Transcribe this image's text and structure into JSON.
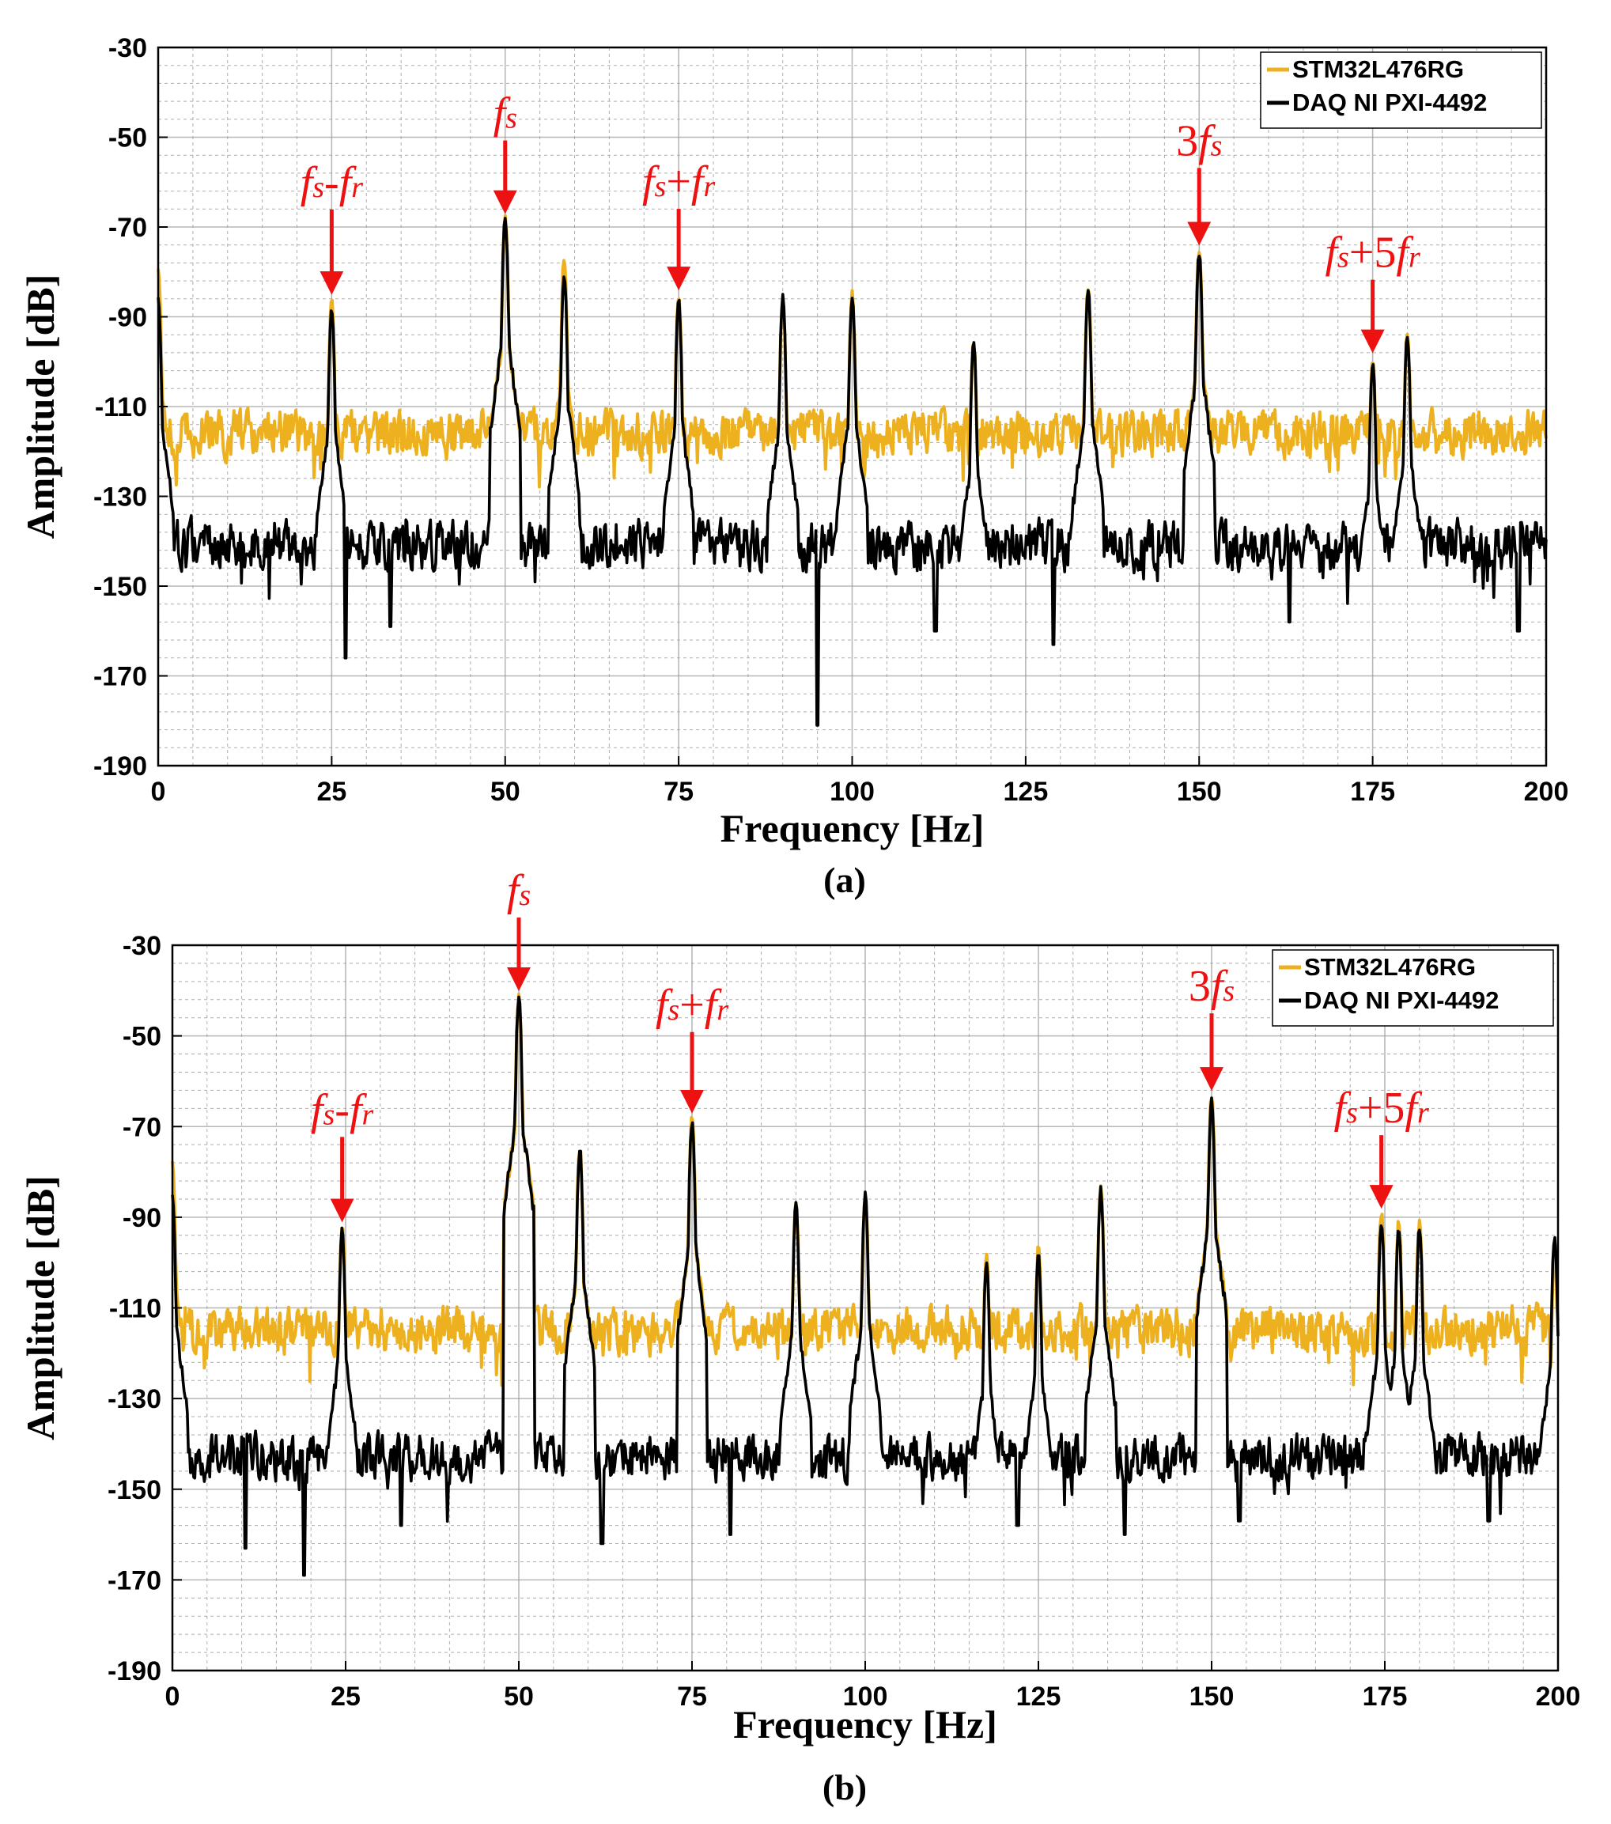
{
  "colors": {
    "stm": "#EDB120",
    "daq": "#000000",
    "annotation": "#EE1111",
    "grid": "#9a9a9a"
  },
  "chart_data": [
    {
      "type": "line",
      "caption": "(a)",
      "xlabel": "Frequency [Hz]",
      "ylabel": "Amplitude [dB]",
      "xlim": [
        0,
        200
      ],
      "ylim": [
        -190,
        -30
      ],
      "xticks": [
        0,
        25,
        50,
        75,
        100,
        125,
        150,
        175,
        200
      ],
      "yticks": [
        -30,
        -50,
        -70,
        -90,
        -110,
        -130,
        -150,
        -170,
        -190
      ],
      "grid": true,
      "legend_position": "top-right",
      "legend": [
        "STM32L476RG",
        "DAQ NI PXI-4492"
      ],
      "series": [
        {
          "name": "STM32L476RG",
          "color": "#EDB120",
          "floor": -116,
          "floor_jitter": 14,
          "peaks": [
            [
              0,
              -79
            ],
            [
              25,
              -86
            ],
            [
              50,
              -68
            ],
            [
              58.5,
              -77
            ],
            [
              75,
              -85
            ],
            [
              90,
              -86
            ],
            [
              100,
              -85
            ],
            [
              117.5,
              -96
            ],
            [
              134,
              -83
            ],
            [
              150,
              -75
            ],
            [
              175,
              -99
            ],
            [
              180,
              -93
            ]
          ]
        },
        {
          "name": "DAQ NI PXI-4492",
          "color": "#000000",
          "floor": -141,
          "floor_jitter": 15,
          "peaks": [
            [
              0,
              -85
            ],
            [
              25,
              -88
            ],
            [
              50,
              -68
            ],
            [
              58.5,
              -81
            ],
            [
              75,
              -86
            ],
            [
              90,
              -86
            ],
            [
              100,
              -85
            ],
            [
              117.5,
              -96
            ],
            [
              134,
              -84
            ],
            [
              150,
              -76
            ],
            [
              175,
              -100
            ],
            [
              180,
              -94
            ]
          ],
          "dips": [
            [
              27,
              -166
            ],
            [
              33.5,
              -159
            ],
            [
              95,
              -181
            ],
            [
              112,
              -160
            ],
            [
              129,
              -163
            ],
            [
              163,
              -158
            ],
            [
              196,
              -160
            ]
          ]
        }
      ],
      "annotations": [
        {
          "label": "fs-fr",
          "x": 25,
          "y": -86
        },
        {
          "label": "fs",
          "x": 50,
          "y": -68
        },
        {
          "label": "fs+fr",
          "x": 75,
          "y": -85
        },
        {
          "label": "3fs",
          "x": 150,
          "y": -75
        },
        {
          "label": "fs+5fr",
          "x": 175,
          "y": -99
        }
      ]
    },
    {
      "type": "line",
      "caption": "(b)",
      "xlabel": "Frequency [Hz]",
      "ylabel": "Amplitude [dB]",
      "xlim": [
        0,
        200
      ],
      "ylim": [
        -190,
        -30
      ],
      "xticks": [
        0,
        25,
        50,
        75,
        100,
        125,
        150,
        175,
        200
      ],
      "yticks": [
        -30,
        -50,
        -70,
        -90,
        -110,
        -130,
        -150,
        -170,
        -190
      ],
      "grid": true,
      "legend_position": "top-right",
      "legend": [
        "STM32L476RG",
        "DAQ NI PXI-4492"
      ],
      "series": [
        {
          "name": "STM32L476RG",
          "color": "#EDB120",
          "floor": -115,
          "floor_jitter": 14,
          "peaks": [
            [
              0,
              -78
            ],
            [
              24.5,
              -92
            ],
            [
              50,
              -41
            ],
            [
              58.8,
              -75
            ],
            [
              75,
              -68
            ],
            [
              90,
              -87
            ],
            [
              100,
              -85
            ],
            [
              117.5,
              -98
            ],
            [
              125,
              -97
            ],
            [
              134,
              -83
            ],
            [
              150,
              -63
            ],
            [
              174.5,
              -89
            ],
            [
              177,
              -91
            ],
            [
              180,
              -91
            ],
            [
              199.5,
              -98
            ]
          ]
        },
        {
          "name": "DAQ NI PXI-4492",
          "color": "#000000",
          "floor": -143,
          "floor_jitter": 14,
          "peaks": [
            [
              0,
              -85
            ],
            [
              24.5,
              -93
            ],
            [
              50,
              -41
            ],
            [
              58.8,
              -75
            ],
            [
              75,
              -69
            ],
            [
              90,
              -87
            ],
            [
              100,
              -85
            ],
            [
              117.5,
              -100
            ],
            [
              125,
              -98
            ],
            [
              134,
              -84
            ],
            [
              150,
              -64
            ],
            [
              174.5,
              -91
            ],
            [
              177,
              -92
            ],
            [
              180,
              -92
            ],
            [
              199.5,
              -94
            ]
          ],
          "dips": [
            [
              10.5,
              -163
            ],
            [
              19,
              -169
            ],
            [
              33,
              -158
            ],
            [
              62,
              -162
            ],
            [
              80.5,
              -160
            ],
            [
              122,
              -158
            ],
            [
              137.5,
              -160
            ],
            [
              154,
              -157
            ],
            [
              190,
              -157
            ]
          ]
        }
      ],
      "annotations": [
        {
          "label": "fs-fr",
          "x": 24.5,
          "y": -92
        },
        {
          "label": "fs",
          "x": 50,
          "y": -41
        },
        {
          "label": "fs+fr",
          "x": 75,
          "y": -68
        },
        {
          "label": "3fs",
          "x": 150,
          "y": -63
        },
        {
          "label": "fs+5fr",
          "x": 174.5,
          "y": -89
        }
      ]
    }
  ]
}
